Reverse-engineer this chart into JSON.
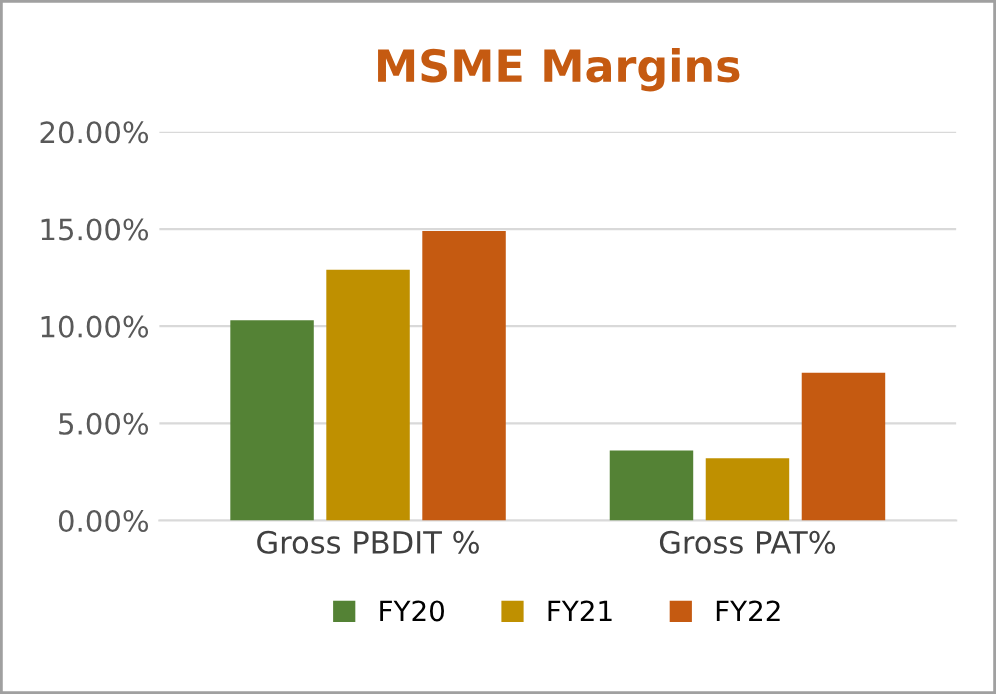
{
  "chart_data": {
    "type": "bar",
    "title": "MSME Margins",
    "categories": [
      "Gross PBDIT %",
      "Gross PAT%"
    ],
    "series": [
      {
        "name": "FY20",
        "color": "#548235",
        "values": [
          10.3,
          3.6
        ]
      },
      {
        "name": "FY21",
        "color": "#bf9000",
        "values": [
          12.9,
          3.2
        ]
      },
      {
        "name": "FY22",
        "color": "#c55a11",
        "values": [
          14.9,
          7.6
        ]
      }
    ],
    "ylim": [
      0,
      20
    ],
    "yticks": [
      {
        "value": 0,
        "label": "0.00%"
      },
      {
        "value": 5,
        "label": "5.00%"
      },
      {
        "value": 10,
        "label": "10.00%"
      },
      {
        "value": 15,
        "label": "15.00%"
      },
      {
        "value": 20,
        "label": "20.00%"
      }
    ],
    "grid": "y",
    "legend": "bottom"
  }
}
